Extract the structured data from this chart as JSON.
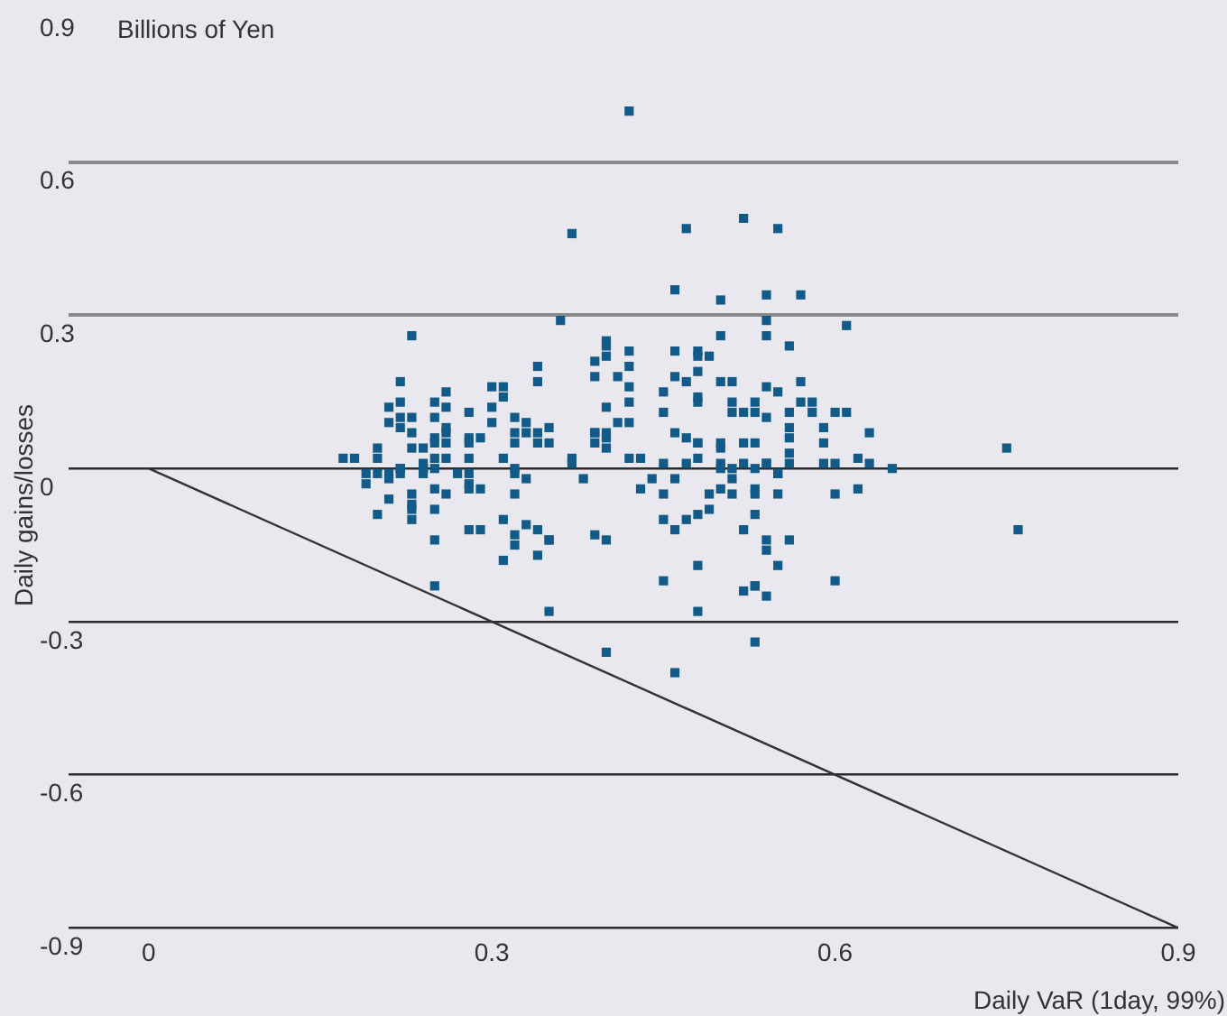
{
  "chart_data": {
    "type": "scatter",
    "xlabel": "Daily VaR (1day, 99%)",
    "ylabel": "Daily gains/losses",
    "annotations": [
      "Billions of Yen"
    ],
    "xlim": [
      -0.07,
      0.9
    ],
    "xticks": [
      0,
      0.3,
      0.6,
      0.9
    ],
    "ylim": [
      -0.9,
      0.9
    ],
    "yticks": [
      -0.9,
      -0.6,
      -0.3,
      0,
      0.3,
      0.6,
      0.9
    ],
    "grid": "y",
    "marker": "square",
    "tick_labels": "xy",
    "series": [
      {
        "color": "#125a88",
        "x": [
          0.36,
          0.23,
          0.34,
          0.39,
          0.39,
          0.22,
          0.34,
          0.26,
          0.3,
          0.31,
          0.31,
          0.21,
          0.22,
          0.25,
          0.26,
          0.3,
          0.28,
          0.25,
          0.22,
          0.23,
          0.21,
          0.22,
          0.3,
          0.32,
          0.33,
          0.23,
          0.26,
          0.26,
          0.25,
          0.32,
          0.33,
          0.34,
          0.35,
          0.28,
          0.29,
          0.28,
          0.26,
          0.25,
          0.32,
          0.34,
          0.35,
          0.39,
          0.23,
          0.24,
          0.2,
          0.2,
          0.17,
          0.18,
          0.25,
          0.26,
          0.28,
          0.31,
          0.37,
          0.37,
          0.24,
          0.22,
          0.22,
          0.24,
          0.24,
          0.25,
          0.21,
          0.22,
          0.24,
          0.19,
          0.2,
          0.21,
          0.19,
          0.27,
          0.28,
          0.28,
          0.28,
          0.29,
          0.25,
          0.32,
          0.32,
          0.33,
          0.38,
          0.23,
          0.26,
          0.32,
          0.21,
          0.23,
          0.23,
          0.25,
          0.2,
          0.23,
          0.31,
          0.33,
          0.34,
          0.28,
          0.29,
          0.32,
          0.35,
          0.35,
          0.32,
          0.39,
          0.25,
          0.34,
          0.31,
          0.25,
          0.35,
          0.37,
          0.47,
          0.52,
          0.55,
          0.46,
          0.5,
          0.54,
          0.54,
          0.5,
          0.54,
          0.4,
          0.4,
          0.4,
          0.42,
          0.46,
          0.48,
          0.48,
          0.49,
          0.42,
          0.41,
          0.46,
          0.47,
          0.48,
          0.42,
          0.5,
          0.51,
          0.54,
          0.42,
          0.45,
          0.48,
          0.48,
          0.51,
          0.53,
          0.4,
          0.45,
          0.51,
          0.52,
          0.53,
          0.54,
          0.41,
          0.42,
          0.39,
          0.4,
          0.4,
          0.39,
          0.4,
          0.46,
          0.47,
          0.48,
          0.48,
          0.48,
          0.5,
          0.5,
          0.52,
          0.53,
          0.42,
          0.43,
          0.45,
          0.47,
          0.5,
          0.5,
          0.51,
          0.52,
          0.54,
          0.54,
          0.53,
          0.55,
          0.44,
          0.43,
          0.46,
          0.45,
          0.49,
          0.5,
          0.51,
          0.51,
          0.53,
          0.53,
          0.55,
          0.53,
          0.52,
          0.48,
          0.49,
          0.47,
          0.45,
          0.46,
          0.4,
          0.54,
          0.54,
          0.55,
          0.48,
          0.45,
          0.52,
          0.53,
          0.53,
          0.54,
          0.48,
          0.53,
          0.4,
          0.46,
          0.57,
          0.61,
          0.56,
          0.57,
          0.55,
          0.57,
          0.58,
          0.58,
          0.6,
          0.61,
          0.56,
          0.56,
          0.59,
          0.63,
          0.56,
          0.59,
          0.56,
          0.56,
          0.59,
          0.6,
          0.62,
          0.63,
          0.65,
          0.75,
          0.55,
          0.6,
          0.62,
          0.56,
          0.6,
          0.76,
          0.42
        ],
        "values": [
          0.29,
          0.26,
          0.2,
          0.21,
          0.18,
          0.17,
          0.17,
          0.15,
          0.16,
          0.16,
          0.14,
          0.12,
          0.13,
          0.13,
          0.12,
          0.12,
          0.11,
          0.1,
          0.1,
          0.1,
          0.09,
          0.08,
          0.09,
          0.1,
          0.09,
          0.07,
          0.07,
          0.08,
          0.06,
          0.07,
          0.07,
          0.07,
          0.08,
          0.06,
          0.06,
          0.05,
          0.05,
          0.05,
          0.05,
          0.05,
          0.05,
          0.07,
          0.04,
          0.04,
          0.04,
          0.02,
          0.02,
          0.02,
          0.02,
          0.02,
          0.02,
          0.02,
          0.02,
          0.01,
          0.01,
          0.0,
          0,
          0,
          0,
          0.0,
          -0.01,
          -0.01,
          -0.01,
          -0.01,
          -0.01,
          -0.02,
          -0.03,
          -0.01,
          -0.01,
          -0.03,
          -0.04,
          -0.04,
          -0.04,
          -0.01,
          0,
          -0.02,
          -0.02,
          -0.05,
          -0.05,
          -0.05,
          -0.06,
          -0.07,
          -0.08,
          -0.08,
          -0.09,
          -0.1,
          -0.1,
          -0.11,
          -0.12,
          -0.12,
          -0.12,
          -0.13,
          -0.14,
          -0.14,
          -0.15,
          -0.13,
          -0.14,
          -0.17,
          -0.18,
          -0.23,
          -0.28,
          0.46,
          0.47,
          0.49,
          0.47,
          0.35,
          0.33,
          0.34,
          0.29,
          0.26,
          0.26,
          0.25,
          0.24,
          0.22,
          0.23,
          0.23,
          0.22,
          0.23,
          0.22,
          0.2,
          0.18,
          0.18,
          0.17,
          0.19,
          0.16,
          0.17,
          0.17,
          0.16,
          0.13,
          0.15,
          0.14,
          0.13,
          0.13,
          0.13,
          0.12,
          0.11,
          0.11,
          0.11,
          0.11,
          0.1,
          0.09,
          0.09,
          0.07,
          0.07,
          0.06,
          0.05,
          0.04,
          0.07,
          0.06,
          0.05,
          0.05,
          0.02,
          0.04,
          0.05,
          0.05,
          0.05,
          0.02,
          0.02,
          0.01,
          0.01,
          0.0,
          0.01,
          0.0,
          0.01,
          0.01,
          0.01,
          0,
          -0.01,
          -0.02,
          -0.04,
          -0.02,
          -0.05,
          -0.05,
          -0.04,
          -0.02,
          -0.05,
          -0.05,
          -0.04,
          -0.05,
          -0.09,
          -0.12,
          -0.09,
          -0.08,
          -0.1,
          -0.1,
          -0.12,
          -0.14,
          -0.14,
          -0.16,
          -0.19,
          -0.19,
          -0.22,
          -0.24,
          -0.23,
          -0.23,
          -0.25,
          -0.28,
          -0.34,
          -0.36,
          -0.4,
          0.34,
          0.28,
          0.24,
          0.17,
          0.15,
          0.13,
          0.13,
          0.11,
          0.11,
          0.11,
          0.11,
          0.08,
          0.08,
          0.07,
          0.06,
          0.05,
          0.03,
          0.01,
          0.01,
          0.01,
          0.02,
          0.01,
          0,
          0.04,
          -0.01,
          -0.05,
          -0.04,
          -0.14,
          -0.22,
          -0.12,
          0.7
        ]
      },
      {
        "type": "line",
        "color": "#333333",
        "marker": "none",
        "line_style": "solid",
        "x": [
          0,
          0.9
        ],
        "values": [
          0,
          -0.9
        ]
      }
    ]
  }
}
